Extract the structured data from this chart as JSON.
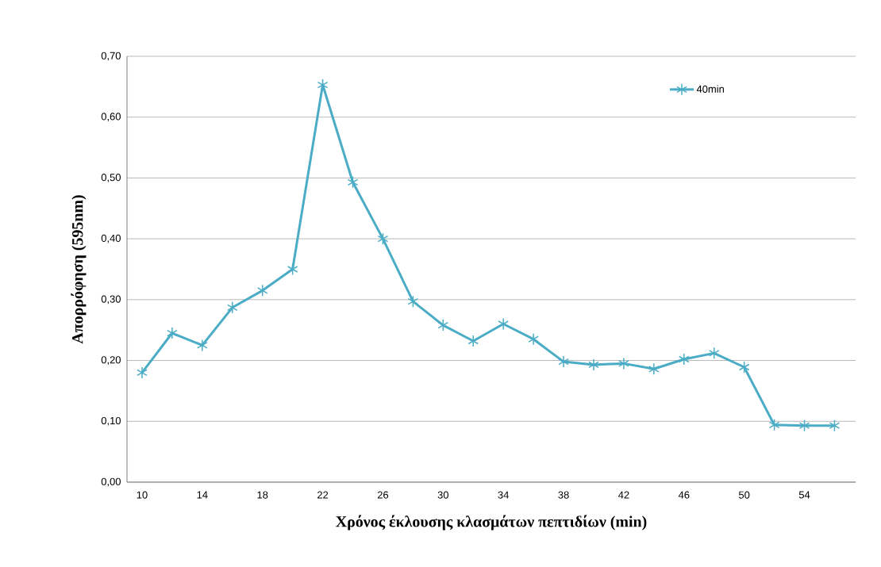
{
  "chart_data": {
    "type": "line",
    "xlabel": "Χρόνος έκλουσης  κλασμάτων πεπτιδίων (min)",
    "ylabel": "Απορρόφηση (595nm)",
    "categories": [
      "10",
      null,
      "14",
      null,
      "18",
      null,
      "22",
      null,
      "26",
      null,
      "30",
      null,
      "34",
      null,
      "38",
      null,
      "42",
      null,
      "46",
      null,
      "50",
      null,
      "54",
      null
    ],
    "series": [
      {
        "name": "40min",
        "color": "#4bacc6",
        "values": [
          0.18,
          0.245,
          0.225,
          0.287,
          0.315,
          0.35,
          0.653,
          0.493,
          0.4,
          0.297,
          0.258,
          0.232,
          0.26,
          0.235,
          0.198,
          0.193,
          0.195,
          0.186,
          0.202,
          0.212,
          0.189,
          0.094,
          0.093,
          0.093
        ]
      }
    ],
    "ylim": [
      0,
      0.7
    ],
    "yticks": [
      {
        "value": 0,
        "label": "0,00"
      },
      {
        "value": 0.1,
        "label": "0,10"
      },
      {
        "value": 0.2,
        "label": "0,20"
      },
      {
        "value": 0.3,
        "label": "0,30"
      },
      {
        "value": 0.4,
        "label": "0,40"
      },
      {
        "value": 0.5,
        "label": "0,50"
      },
      {
        "value": 0.6,
        "label": "0,60"
      },
      {
        "value": 0.7,
        "label": "0,70"
      }
    ],
    "grid": "y",
    "legend": "top right",
    "marker": "cross",
    "line_style": "solid"
  }
}
